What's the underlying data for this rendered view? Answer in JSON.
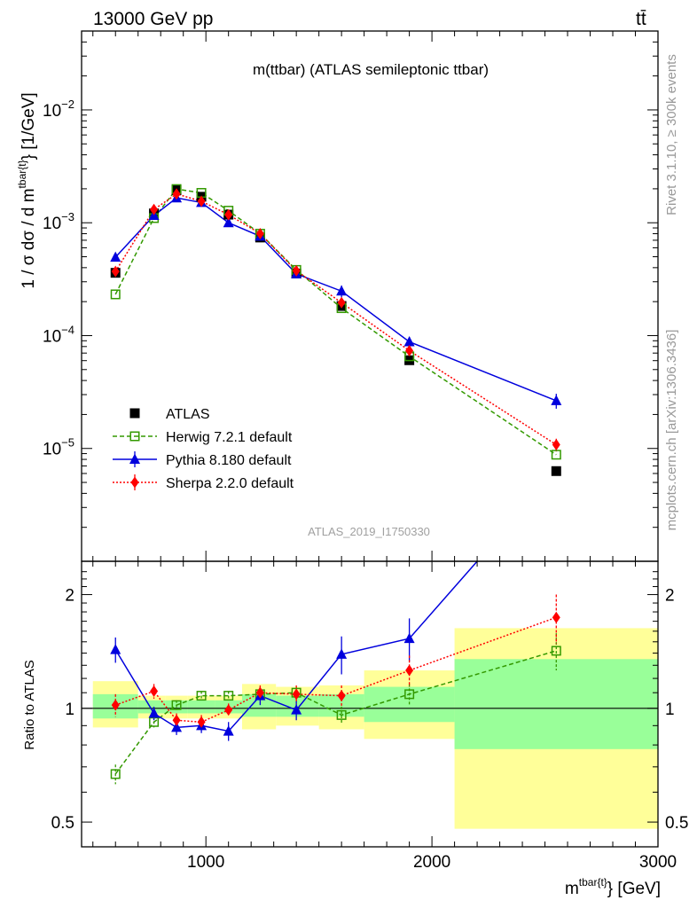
{
  "header": {
    "left": "13000 GeV pp",
    "right": "tt̄"
  },
  "side": {
    "rivet": "Rivet 3.1.10, ≥ 300k events",
    "mcplots": "mcplots.cern.ch [arXiv:1306.3436]"
  },
  "watermark": "ATLAS_2019_I1750330",
  "chart_data": [
    {
      "type": "scatter",
      "title": "m(ttbar) (ATLAS semileptonic ttbar)",
      "ylabel": "1 / σ dσ / d m^{tbar{t}} [1/GeV]",
      "ylabel_parts": {
        "pre": "1 / σ dσ / d m",
        "sup": "tbar{t}",
        "post": "} [1/GeV]"
      },
      "yscale": "log",
      "ylim": [
        1e-06,
        0.05
      ],
      "xlim": [
        450,
        3000
      ],
      "yticks": [
        {
          "value": 1e-05,
          "mant": "10",
          "exp": "−5"
        },
        {
          "value": 0.0001,
          "mant": "10",
          "exp": "−4"
        },
        {
          "value": 0.001,
          "mant": "10",
          "exp": "−3"
        },
        {
          "value": 0.01,
          "mant": "10",
          "exp": "−2"
        }
      ],
      "legend_position": "lower-left",
      "series": [
        {
          "name": "ATLAS",
          "color": "#000000",
          "marker": "square-filled",
          "x": [
            600,
            770,
            870,
            980,
            1100,
            1240,
            1400,
            1600,
            1900,
            2550
          ],
          "y": [
            0.00036,
            0.00121,
            0.00195,
            0.0017,
            0.00118,
            0.00074,
            0.000355,
            0.000183,
            6.05e-05,
            6.3e-06
          ]
        },
        {
          "name": "Herwig 7.2.1 default",
          "color": "#339900",
          "marker": "square-open",
          "line": "dashed",
          "x": [
            600,
            770,
            870,
            980,
            1100,
            1240,
            1400,
            1600,
            1900,
            2550
          ],
          "y": [
            0.000232,
            0.0011,
            0.00199,
            0.00184,
            0.00128,
            0.0008,
            0.000382,
            0.000175,
            6.55e-05,
            8.8e-06
          ]
        },
        {
          "name": "Pythia 8.180 default",
          "color": "#0000dd",
          "marker": "triangle-filled",
          "line": "solid",
          "x": [
            600,
            770,
            870,
            980,
            1100,
            1240,
            1400,
            1600,
            1900,
            2550
          ],
          "y": [
            0.000495,
            0.00116,
            0.00166,
            0.00151,
            0.001,
            0.00076,
            0.000352,
            0.000248,
            8.8e-05,
            2.65e-05
          ],
          "yerr": [
            3e-05,
            4e-05,
            6e-05,
            6e-05,
            5e-05,
            4e-05,
            2.2e-05,
            3e-05,
            9e-06,
            4e-06
          ]
        },
        {
          "name": "Sherpa 2.2.0 default",
          "color": "#ff0000",
          "marker": "diamond-filled",
          "line": "dotted",
          "x": [
            600,
            770,
            870,
            980,
            1100,
            1240,
            1400,
            1600,
            1900,
            2550
          ],
          "y": [
            0.00037,
            0.00131,
            0.0018,
            0.00155,
            0.00118,
            0.0008,
            0.000375,
            0.000196,
            7.35e-05,
            1.08e-05
          ],
          "yerr": [
            2e-05,
            5e-05,
            6e-05,
            6e-05,
            5e-05,
            3e-05,
            2e-05,
            1.5e-05,
            6e-06,
            1.4e-06
          ]
        }
      ]
    },
    {
      "type": "scatter",
      "ylabel": "Ratio to ATLAS",
      "yscale": "log",
      "ylim": [
        0.43,
        2.45
      ],
      "xlim": [
        450,
        3000
      ],
      "xlabel_parts": {
        "pre": "m",
        "sup": "tbar{t}",
        "post": "} [GeV]"
      },
      "xticks": [
        1000,
        2000,
        3000
      ],
      "yticks": [
        0.5,
        1,
        2
      ],
      "reference": 1,
      "bins": [
        {
          "lo": 500,
          "hi": 700,
          "band_inner": [
            0.94,
            1.09
          ],
          "band_outer": [
            0.89,
            1.18
          ]
        },
        {
          "lo": 700,
          "hi": 820,
          "band_inner": [
            0.97,
            1.05
          ],
          "band_outer": [
            0.94,
            1.08
          ]
        },
        {
          "lo": 820,
          "hi": 920,
          "band_inner": [
            0.97,
            1.05
          ],
          "band_outer": [
            0.94,
            1.08
          ]
        },
        {
          "lo": 920,
          "hi": 1040,
          "band_inner": [
            0.97,
            1.05
          ],
          "band_outer": [
            0.94,
            1.08
          ]
        },
        {
          "lo": 1040,
          "hi": 1160,
          "band_inner": [
            0.97,
            1.05
          ],
          "band_outer": [
            0.94,
            1.08
          ]
        },
        {
          "lo": 1160,
          "hi": 1310,
          "band_inner": [
            0.95,
            1.09
          ],
          "band_outer": [
            0.88,
            1.16
          ]
        },
        {
          "lo": 1310,
          "hi": 1500,
          "band_inner": [
            0.95,
            1.08
          ],
          "band_outer": [
            0.9,
            1.14
          ]
        },
        {
          "lo": 1500,
          "hi": 1700,
          "band_inner": [
            0.95,
            1.09
          ],
          "band_outer": [
            0.88,
            1.15
          ]
        },
        {
          "lo": 1700,
          "hi": 2100,
          "band_inner": [
            0.92,
            1.14
          ],
          "band_outer": [
            0.83,
            1.26
          ]
        },
        {
          "lo": 2100,
          "hi": 3000,
          "band_inner": [
            0.78,
            1.35
          ],
          "band_outer": [
            0.48,
            1.63
          ]
        }
      ],
      "series": [
        {
          "name": "Herwig 7.2.1 default",
          "color": "#339900",
          "marker": "square-open",
          "line": "dashed",
          "x": [
            600,
            770,
            870,
            980,
            1100,
            1240,
            1400,
            1600,
            1900,
            2550
          ],
          "y": [
            0.67,
            0.92,
            1.02,
            1.08,
            1.08,
            1.09,
            1.1,
            0.96,
            1.09,
            1.42
          ],
          "yerr": [
            0.04,
            0.03,
            0.03,
            0.03,
            0.03,
            0.03,
            0.04,
            0.05,
            0.07,
            0.16
          ]
        },
        {
          "name": "Pythia 8.180 default",
          "color": "#0000dd",
          "marker": "triangle-filled",
          "line": "solid",
          "x": [
            600,
            770,
            870,
            980,
            1100,
            1240,
            1400,
            1600,
            1900,
            2200
          ],
          "y": [
            1.43,
            0.97,
            0.89,
            0.9,
            0.87,
            1.08,
            0.99,
            1.39,
            1.53,
            2.45
          ],
          "yerr": [
            0.11,
            0.04,
            0.04,
            0.04,
            0.05,
            0.06,
            0.06,
            0.16,
            0.2,
            0
          ],
          "draw_marker": [
            true,
            true,
            true,
            true,
            true,
            true,
            true,
            true,
            true,
            false
          ]
        },
        {
          "name": "Sherpa 2.2.0 default",
          "color": "#ff0000",
          "marker": "diamond-filled",
          "line": "dotted",
          "x": [
            600,
            770,
            870,
            980,
            1100,
            1240,
            1400,
            1600,
            1900,
            2550
          ],
          "y": [
            1.02,
            1.11,
            0.93,
            0.92,
            0.99,
            1.1,
            1.09,
            1.08,
            1.26,
            1.74
          ],
          "yerr": [
            0.07,
            0.05,
            0.04,
            0.04,
            0.04,
            0.05,
            0.06,
            0.07,
            0.12,
            0.26
          ]
        }
      ]
    }
  ]
}
